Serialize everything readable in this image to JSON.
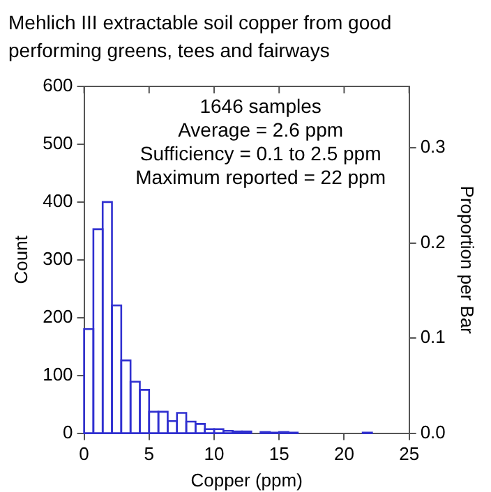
{
  "chart_data": {
    "type": "histogram",
    "title": "Mehlich III extractable soil copper from good performing greens, tees and fairways",
    "xlabel": "Copper (ppm)",
    "ylabel": "Count",
    "y2label": "Proportion per Bar",
    "annotations": [
      "1646 samples",
      "Average = 2.6 ppm",
      "Sufficiency = 0.1 to 2.5 ppm",
      "Maximum reported = 22 ppm"
    ],
    "bins": [
      0,
      0.714,
      1.429,
      2.143,
      2.857,
      3.571,
      4.286,
      5,
      5.714,
      6.429,
      7.143,
      7.857,
      8.571,
      9.286,
      10,
      10.714,
      11.429,
      12.143,
      12.857,
      13.571,
      14.286,
      15,
      15.714,
      16.429,
      17.143,
      17.857,
      18.571,
      19.286,
      20,
      20.714,
      21.429,
      22.143
    ],
    "values": [
      180,
      353,
      400,
      221,
      126,
      89,
      75,
      37,
      37,
      21,
      35,
      20,
      16,
      7,
      7,
      4,
      3,
      3,
      0,
      2,
      1,
      2,
      1,
      0,
      0,
      0,
      0,
      0,
      0,
      0,
      1
    ],
    "color": "#3030d0",
    "xlim": [
      0,
      25
    ],
    "xticks": [
      0,
      5,
      10,
      15,
      20,
      25
    ],
    "ylim": [
      0,
      600
    ],
    "yticks": [
      0,
      100,
      200,
      300,
      400,
      500,
      600
    ],
    "y2lim": [
      0,
      0.3645
    ],
    "y2ticks": [
      {
        "value": 0,
        "label": "0.0"
      },
      0.1,
      0.2,
      0.3
    ],
    "grid": false,
    "legend": false
  }
}
